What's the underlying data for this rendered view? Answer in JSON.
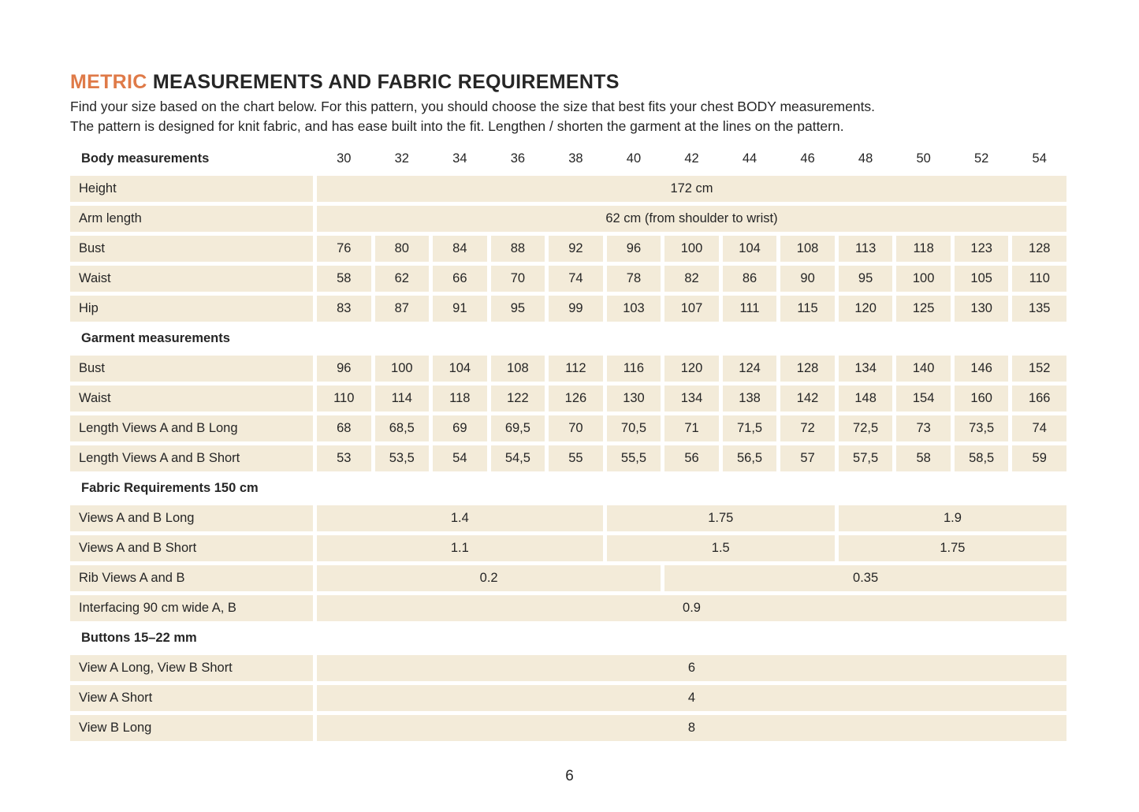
{
  "colors": {
    "accent": "#DF7A48",
    "cell_background": "#F3EBD9",
    "text": "#262626"
  },
  "header": {
    "title_highlight": "METRIC",
    "title_rest": "MEASUREMENTS AND FABRIC REQUIREMENTS",
    "intro_line1": "Find your size based on the chart below. For this pattern, you should choose the size that best fits your chest BODY measurements.",
    "intro_line2": "The pattern is designed for knit fabric, and has ease built into the fit. Lengthen / shorten the garment at the lines on the pattern."
  },
  "table": {
    "size_header": {
      "label": "Body measurements",
      "sizes": [
        "30",
        "32",
        "34",
        "36",
        "38",
        "40",
        "42",
        "44",
        "46",
        "48",
        "50",
        "52",
        "54"
      ]
    },
    "rows": [
      {
        "type": "data",
        "label": "Height",
        "cells": [
          {
            "span": 13,
            "value": "172 cm"
          }
        ]
      },
      {
        "type": "data",
        "label": "Arm length",
        "cells": [
          {
            "span": 13,
            "value": "62 cm (from shoulder to wrist)"
          }
        ]
      },
      {
        "type": "data",
        "label": "Bust",
        "cells": [
          {
            "span": 1,
            "value": "76"
          },
          {
            "span": 1,
            "value": "80"
          },
          {
            "span": 1,
            "value": "84"
          },
          {
            "span": 1,
            "value": "88"
          },
          {
            "span": 1,
            "value": "92"
          },
          {
            "span": 1,
            "value": "96"
          },
          {
            "span": 1,
            "value": "100"
          },
          {
            "span": 1,
            "value": "104"
          },
          {
            "span": 1,
            "value": "108"
          },
          {
            "span": 1,
            "value": "113"
          },
          {
            "span": 1,
            "value": "118"
          },
          {
            "span": 1,
            "value": "123"
          },
          {
            "span": 1,
            "value": "128"
          }
        ]
      },
      {
        "type": "data",
        "label": "Waist",
        "cells": [
          {
            "span": 1,
            "value": "58"
          },
          {
            "span": 1,
            "value": "62"
          },
          {
            "span": 1,
            "value": "66"
          },
          {
            "span": 1,
            "value": "70"
          },
          {
            "span": 1,
            "value": "74"
          },
          {
            "span": 1,
            "value": "78"
          },
          {
            "span": 1,
            "value": "82"
          },
          {
            "span": 1,
            "value": "86"
          },
          {
            "span": 1,
            "value": "90"
          },
          {
            "span": 1,
            "value": "95"
          },
          {
            "span": 1,
            "value": "100"
          },
          {
            "span": 1,
            "value": "105"
          },
          {
            "span": 1,
            "value": "110"
          }
        ]
      },
      {
        "type": "data",
        "label": "Hip",
        "cells": [
          {
            "span": 1,
            "value": "83"
          },
          {
            "span": 1,
            "value": "87"
          },
          {
            "span": 1,
            "value": "91"
          },
          {
            "span": 1,
            "value": "95"
          },
          {
            "span": 1,
            "value": "99"
          },
          {
            "span": 1,
            "value": "103"
          },
          {
            "span": 1,
            "value": "107"
          },
          {
            "span": 1,
            "value": "111"
          },
          {
            "span": 1,
            "value": "115"
          },
          {
            "span": 1,
            "value": "120"
          },
          {
            "span": 1,
            "value": "125"
          },
          {
            "span": 1,
            "value": "130"
          },
          {
            "span": 1,
            "value": "135"
          }
        ]
      },
      {
        "type": "section",
        "label": "Garment measurements"
      },
      {
        "type": "data",
        "label": "Bust",
        "cells": [
          {
            "span": 1,
            "value": "96"
          },
          {
            "span": 1,
            "value": "100"
          },
          {
            "span": 1,
            "value": "104"
          },
          {
            "span": 1,
            "value": "108"
          },
          {
            "span": 1,
            "value": "112"
          },
          {
            "span": 1,
            "value": "116"
          },
          {
            "span": 1,
            "value": "120"
          },
          {
            "span": 1,
            "value": "124"
          },
          {
            "span": 1,
            "value": "128"
          },
          {
            "span": 1,
            "value": "134"
          },
          {
            "span": 1,
            "value": "140"
          },
          {
            "span": 1,
            "value": "146"
          },
          {
            "span": 1,
            "value": "152"
          }
        ]
      },
      {
        "type": "data",
        "label": "Waist",
        "cells": [
          {
            "span": 1,
            "value": "110"
          },
          {
            "span": 1,
            "value": "114"
          },
          {
            "span": 1,
            "value": "118"
          },
          {
            "span": 1,
            "value": "122"
          },
          {
            "span": 1,
            "value": "126"
          },
          {
            "span": 1,
            "value": "130"
          },
          {
            "span": 1,
            "value": "134"
          },
          {
            "span": 1,
            "value": "138"
          },
          {
            "span": 1,
            "value": "142"
          },
          {
            "span": 1,
            "value": "148"
          },
          {
            "span": 1,
            "value": "154"
          },
          {
            "span": 1,
            "value": "160"
          },
          {
            "span": 1,
            "value": "166"
          }
        ]
      },
      {
        "type": "data",
        "label": "Length Views A and B Long",
        "cells": [
          {
            "span": 1,
            "value": "68"
          },
          {
            "span": 1,
            "value": "68,5"
          },
          {
            "span": 1,
            "value": "69"
          },
          {
            "span": 1,
            "value": "69,5"
          },
          {
            "span": 1,
            "value": "70"
          },
          {
            "span": 1,
            "value": "70,5"
          },
          {
            "span": 1,
            "value": "71"
          },
          {
            "span": 1,
            "value": "71,5"
          },
          {
            "span": 1,
            "value": "72"
          },
          {
            "span": 1,
            "value": "72,5"
          },
          {
            "span": 1,
            "value": "73"
          },
          {
            "span": 1,
            "value": "73,5"
          },
          {
            "span": 1,
            "value": "74"
          }
        ]
      },
      {
        "type": "data",
        "label": "Length Views A and B Short",
        "cells": [
          {
            "span": 1,
            "value": "53"
          },
          {
            "span": 1,
            "value": "53,5"
          },
          {
            "span": 1,
            "value": "54"
          },
          {
            "span": 1,
            "value": "54,5"
          },
          {
            "span": 1,
            "value": "55"
          },
          {
            "span": 1,
            "value": "55,5"
          },
          {
            "span": 1,
            "value": "56"
          },
          {
            "span": 1,
            "value": "56,5"
          },
          {
            "span": 1,
            "value": "57"
          },
          {
            "span": 1,
            "value": "57,5"
          },
          {
            "span": 1,
            "value": "58"
          },
          {
            "span": 1,
            "value": "58,5"
          },
          {
            "span": 1,
            "value": "59"
          }
        ]
      },
      {
        "type": "section",
        "label": "Fabric Requirements 150 cm"
      },
      {
        "type": "data",
        "label": "Views A and B Long",
        "cells": [
          {
            "span": 5,
            "value": "1.4"
          },
          {
            "span": 4,
            "value": "1.75"
          },
          {
            "span": 4,
            "value": "1.9"
          }
        ]
      },
      {
        "type": "data",
        "label": "Views A and B Short",
        "cells": [
          {
            "span": 5,
            "value": "1.1"
          },
          {
            "span": 4,
            "value": "1.5"
          },
          {
            "span": 4,
            "value": "1.75"
          }
        ]
      },
      {
        "type": "data",
        "label": "Rib Views A and B",
        "cells": [
          {
            "span": 6,
            "value": "0.2"
          },
          {
            "span": 7,
            "value": "0.35"
          }
        ]
      },
      {
        "type": "data",
        "label": "Interfacing 90 cm wide A, B",
        "cells": [
          {
            "span": 13,
            "value": "0.9"
          }
        ]
      },
      {
        "type": "section",
        "label": "Buttons 15–22 mm"
      },
      {
        "type": "data",
        "label": "View A Long, View B Short",
        "cells": [
          {
            "span": 13,
            "value": "6"
          }
        ]
      },
      {
        "type": "data",
        "label": "View A Short",
        "cells": [
          {
            "span": 13,
            "value": "4"
          }
        ]
      },
      {
        "type": "data",
        "label": "View B Long",
        "cells": [
          {
            "span": 13,
            "value": "8"
          }
        ]
      }
    ]
  },
  "footer": {
    "page_number": "6"
  }
}
